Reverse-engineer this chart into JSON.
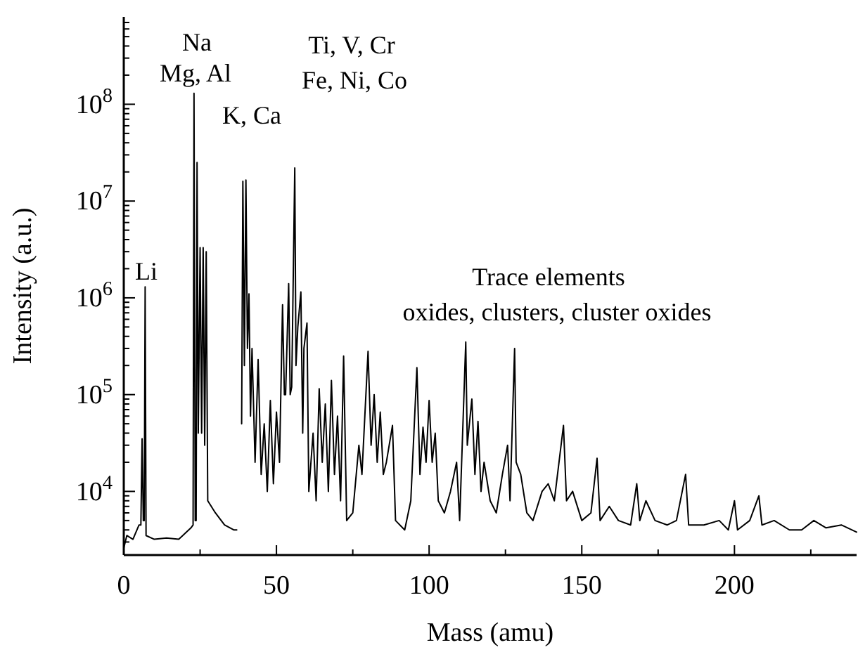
{
  "chart_data": {
    "type": "line",
    "xlabel": "Mass (amu)",
    "ylabel": "Intensity (a.u.)",
    "log": "y",
    "grid": false,
    "marker": "none",
    "line_style": "solid",
    "xlim": [
      0,
      240
    ],
    "xticks": [
      0,
      {
        "value": 25,
        "label": null
      },
      50,
      {
        "value": 75,
        "label": null
      },
      100,
      {
        "value": 125,
        "label": null
      },
      150,
      {
        "value": 175,
        "label": null
      },
      200,
      {
        "value": 225,
        "label": null
      }
    ],
    "ylim": [
      2200,
      800000000
    ],
    "yticks": [
      {
        "value": 3000,
        "label": null
      },
      {
        "value": 4000,
        "label": null
      },
      {
        "value": 5000,
        "label": null
      },
      {
        "value": 6000,
        "label": null
      },
      {
        "value": 7000,
        "label": null
      },
      {
        "value": 8000,
        "label": null
      },
      {
        "value": 9000,
        "label": null
      },
      {
        "value": 10000,
        "label": "10$^{4}$"
      },
      {
        "value": 20000,
        "label": null
      },
      {
        "value": 30000,
        "label": null
      },
      {
        "value": 40000,
        "label": null
      },
      {
        "value": 50000,
        "label": null
      },
      {
        "value": 60000,
        "label": null
      },
      {
        "value": 70000,
        "label": null
      },
      {
        "value": 80000,
        "label": null
      },
      {
        "value": 90000,
        "label": null
      },
      {
        "value": 100000,
        "label": "10$^{5}$"
      },
      {
        "value": 200000,
        "label": null
      },
      {
        "value": 300000,
        "label": null
      },
      {
        "value": 400000,
        "label": null
      },
      {
        "value": 500000,
        "label": null
      },
      {
        "value": 600000,
        "label": null
      },
      {
        "value": 700000,
        "label": null
      },
      {
        "value": 800000,
        "label": null
      },
      {
        "value": 900000,
        "label": null
      },
      {
        "value": 1000000,
        "label": "10$^{6}$"
      },
      {
        "value": 2000000,
        "label": null
      },
      {
        "value": 3000000,
        "label": null
      },
      {
        "value": 4000000,
        "label": null
      },
      {
        "value": 5000000,
        "label": null
      },
      {
        "value": 6000000,
        "label": null
      },
      {
        "value": 7000000,
        "label": null
      },
      {
        "value": 8000000,
        "label": null
      },
      {
        "value": 9000000,
        "label": null
      },
      {
        "value": 10000000,
        "label": "10$^{7}$"
      },
      {
        "value": 20000000,
        "label": null
      },
      {
        "value": 30000000,
        "label": null
      },
      {
        "value": 40000000,
        "label": null
      },
      {
        "value": 50000000,
        "label": null
      },
      {
        "value": 60000000,
        "label": null
      },
      {
        "value": 70000000,
        "label": null
      },
      {
        "value": 80000000,
        "label": null
      },
      {
        "value": 90000000,
        "label": null
      },
      {
        "value": 100000000,
        "label": "10$^{8}$"
      },
      {
        "value": 200000000,
        "label": null
      },
      {
        "value": 300000000,
        "label": null
      },
      {
        "value": 400000000,
        "label": null
      },
      {
        "value": 500000000,
        "label": null
      },
      {
        "value": 600000000,
        "label": null
      },
      {
        "value": 700000000,
        "label": null
      }
    ],
    "annotations": [
      "Li",
      "Na",
      "Mg, Al",
      "K, Ca",
      "Ti, V, Cr",
      "Fe, Ni, Co",
      "Trace elements",
      "oxides, clusters, cluster oxides"
    ],
    "series": [
      {
        "color": "#000000",
        "x": [
          0,
          1,
          3,
          5,
          5.6,
          6,
          6.4,
          6.7,
          7,
          7.3,
          10,
          14,
          18,
          22,
          22.7,
          23,
          23.4,
          23.7,
          24,
          24.4,
          25,
          25.5,
          26,
          26.5,
          27,
          27.5,
          30,
          33,
          36,
          37,
          37.2,
          38.3,
          38.6,
          39,
          39.5,
          40,
          40.5,
          41,
          41.5,
          42,
          43,
          44,
          45,
          46,
          47,
          48,
          49,
          50,
          51,
          52,
          52.6,
          53,
          54,
          54.5,
          55,
          56,
          56.4,
          57,
          58,
          58.6,
          59,
          60,
          60.6,
          62,
          63,
          64,
          65,
          66,
          67,
          68,
          69,
          70,
          71,
          72,
          73,
          75,
          77,
          78,
          80,
          81,
          82,
          83,
          84,
          85,
          86,
          88,
          89,
          92,
          94,
          96,
          97,
          98,
          99,
          100,
          101,
          102,
          103,
          105,
          107,
          109,
          110,
          112,
          112.5,
          114,
          115,
          116,
          117,
          118,
          120,
          122,
          124,
          125.7,
          126.5,
          128,
          128.5,
          130,
          132,
          134,
          137,
          139,
          141,
          144,
          145,
          147,
          150,
          153,
          155,
          156,
          159,
          162,
          166,
          168,
          169,
          171,
          174,
          178,
          181,
          184,
          185,
          190,
          195,
          198,
          200,
          201,
          205,
          208,
          209,
          213,
          218,
          222,
          226,
          230,
          235,
          240
        ],
        "values": [
          2600,
          3500,
          3200,
          4500,
          4500,
          35000,
          5000,
          5000,
          1300000,
          3500,
          3200,
          3300,
          3200,
          4200,
          4500,
          130000000,
          5000,
          5000,
          25000000,
          40000,
          3300000,
          40000,
          3300000,
          30000,
          3000000,
          8000,
          6000,
          4500,
          4000,
          4000,
          null,
          null,
          50000,
          16000000,
          200000,
          16500000,
          300000,
          1100000,
          60000,
          300000,
          20000,
          230000,
          15000,
          50000,
          10000,
          87000,
          12000,
          66000,
          20000,
          850000,
          100000,
          100000,
          1400000,
          100000,
          120000,
          22000000,
          200000,
          500000,
          1150000,
          40000,
          300000,
          550000,
          10000,
          40000,
          8000,
          115000,
          20000,
          80000,
          10000,
          140000,
          15000,
          60000,
          8000,
          250000,
          5000,
          6000,
          30000,
          15000,
          280000,
          30000,
          100000,
          20000,
          66000,
          15000,
          20000,
          48000,
          5000,
          4000,
          8000,
          190000,
          15000,
          46000,
          20000,
          87000,
          20000,
          40000,
          8000,
          6000,
          10000,
          20000,
          5000,
          350000,
          30000,
          90000,
          15000,
          53000,
          10000,
          20000,
          8000,
          6000,
          15000,
          30000,
          8000,
          300000,
          20000,
          15000,
          6000,
          5000,
          10000,
          12000,
          8000,
          48000,
          8000,
          10000,
          5000,
          6000,
          22000,
          5000,
          7000,
          5000,
          4500,
          12000,
          5000,
          8000,
          5000,
          4500,
          5000,
          15000,
          4500,
          4500,
          5000,
          4000,
          8000,
          4000,
          5000,
          9000,
          4500,
          5000,
          4000,
          4000,
          5000,
          4200,
          4500,
          3800
        ]
      }
    ]
  }
}
